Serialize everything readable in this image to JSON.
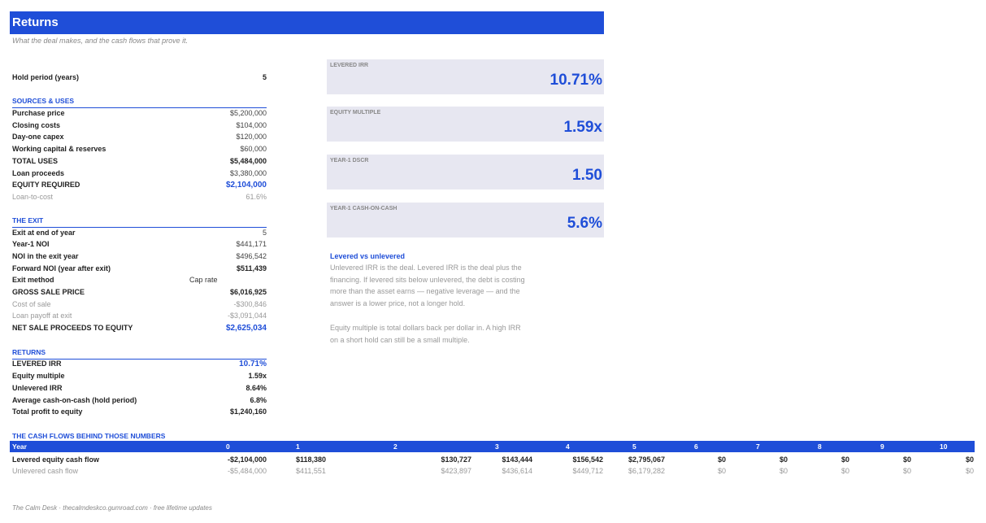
{
  "title": "Returns",
  "subtitle": "What the deal makes, and the cash flows that prove it.",
  "hold_period": {
    "label": "Hold period (years)",
    "value": "5"
  },
  "sources_uses": {
    "heading": "SOURCES & USES",
    "rows": [
      {
        "label": "Purchase price",
        "value": "$5,200,000"
      },
      {
        "label": "Closing costs",
        "value": "$104,000"
      },
      {
        "label": "Day-one capex",
        "value": "$120,000"
      },
      {
        "label": "Working capital & reserves",
        "value": "$60,000"
      },
      {
        "label": "TOTAL USES",
        "value": "$5,484,000"
      },
      {
        "label": "Loan proceeds",
        "value": "$3,380,000"
      },
      {
        "label": "EQUITY REQUIRED",
        "value": "$2,104,000"
      },
      {
        "label": "Loan-to-cost",
        "value": "61.6%"
      }
    ]
  },
  "exit": {
    "heading": "THE EXIT",
    "rows": [
      {
        "label": "Exit at end of year",
        "value": "5"
      },
      {
        "label": "Year-1 NOI",
        "value": "$441,171"
      },
      {
        "label": "NOI in the exit year",
        "value": "$496,542"
      },
      {
        "label": "Forward NOI (year after exit)",
        "value": "$511,439"
      },
      {
        "label": "Exit method",
        "value": "Cap rate"
      },
      {
        "label": "GROSS SALE PRICE",
        "value": "$6,016,925"
      },
      {
        "label": "Cost of sale",
        "value": "-$300,846"
      },
      {
        "label": "Loan payoff at exit",
        "value": "-$3,091,044"
      },
      {
        "label": "NET SALE PROCEEDS TO EQUITY",
        "value": "$2,625,034"
      }
    ]
  },
  "returns": {
    "heading": "RETURNS",
    "rows": [
      {
        "label": "LEVERED IRR",
        "value": "10.71%"
      },
      {
        "label": "Equity multiple",
        "value": "1.59x"
      },
      {
        "label": "Unlevered IRR",
        "value": "8.64%"
      },
      {
        "label": "Average cash-on-cash (hold period)",
        "value": "6.8%"
      },
      {
        "label": "Total profit to equity",
        "value": "$1,240,160"
      }
    ]
  },
  "kpis": [
    {
      "label": "LEVERED IRR",
      "value": "10.71%"
    },
    {
      "label": "EQUITY MULTIPLE",
      "value": "1.59x"
    },
    {
      "label": "YEAR-1 DSCR",
      "value": "1.50"
    },
    {
      "label": "YEAR-1 CASH-ON-CASH",
      "value": "5.6%"
    }
  ],
  "notes": {
    "title": "Levered vs unlevered",
    "para1": "Unlevered IRR is the deal. Levered IRR is the deal plus the financing. If levered sits below unlevered, the debt is costing more than the asset earns — negative leverage — and the answer is a lower price, not a longer hold.",
    "para2": "Equity multiple is total dollars back per dollar in. A high IRR on a short hold can still be a small multiple."
  },
  "cash_flows": {
    "heading": "THE CASH FLOWS BEHIND THOSE NUMBERS",
    "year_label": "Year",
    "years": [
      "0",
      "1",
      "2",
      "3",
      "4",
      "5",
      "6",
      "7",
      "8",
      "9",
      "10"
    ],
    "levered_label": "Levered equity cash flow",
    "unlevered_label": "Unlevered cash flow",
    "levered": [
      "-$2,104,000",
      "$118,380",
      "$130,727",
      "$143,444",
      "$156,542",
      "$2,795,067",
      "$0",
      "$0",
      "$0",
      "$0",
      "$0"
    ],
    "unlevered": [
      "-$5,484,000",
      "$411,551",
      "$423,897",
      "$436,614",
      "$449,712",
      "$6,179,282",
      "$0",
      "$0",
      "$0",
      "$0",
      "$0"
    ]
  },
  "footer": "The Calm Desk · thecalmdeskco.gumroad.com · free lifetime updates"
}
